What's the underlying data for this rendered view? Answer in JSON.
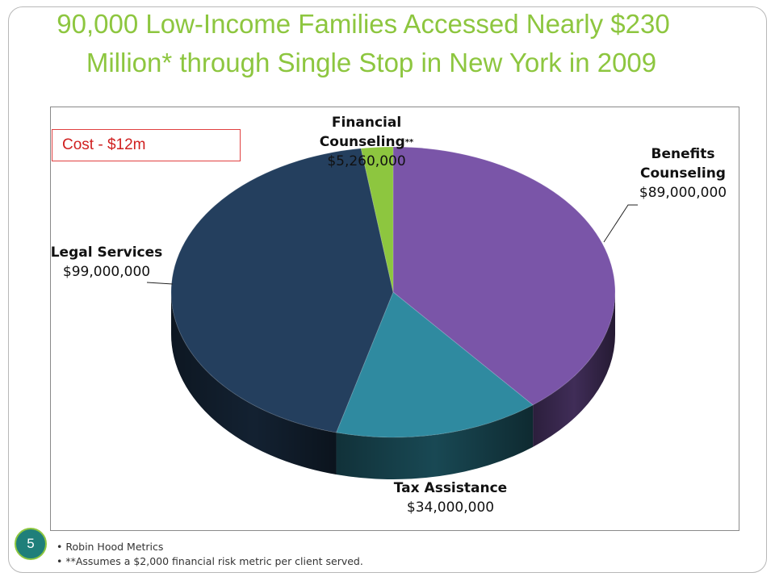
{
  "slide": {
    "title_line1": "90,000 Low-Income Families Accessed Nearly $230",
    "title_line2": "Million* through Single Stop in New York in 2009",
    "cost_note": "Cost - $12m",
    "page_number": "5",
    "footnotes": [
      "Robin Hood Metrics",
      "**Assumes a $2,000 financial risk metric per client served."
    ]
  },
  "chart_data": {
    "type": "pie",
    "title": "",
    "slices": [
      {
        "name": "Benefits Counseling",
        "label_lines": [
          "Benefits",
          "Counseling"
        ],
        "value_label": "$89,000,000",
        "value": 89000000,
        "color": "#7a55a8"
      },
      {
        "name": "Tax Assistance",
        "label_lines": [
          "Tax Assistance"
        ],
        "value_label": "$34,000,000",
        "value": 34000000,
        "color": "#2f8aa0"
      },
      {
        "name": "Legal Services",
        "label_lines": [
          "Legal Services"
        ],
        "value_label": "$99,000,000",
        "value": 99000000,
        "color": "#243f5e"
      },
      {
        "name": "Financial Counseling",
        "label_lines": [
          "Financial",
          "Counseling"
        ],
        "marker": "**",
        "value_label": "$5,260,000",
        "value": 5260000,
        "color": "#8dc63f"
      }
    ]
  }
}
